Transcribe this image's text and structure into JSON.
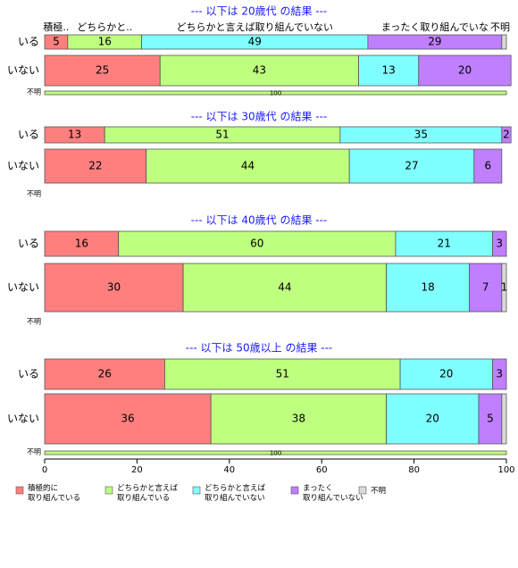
{
  "chart_data": {
    "type": "bar",
    "orientation": "horizontal",
    "stacked": true,
    "xlim": [
      0,
      100
    ],
    "x_ticks": [
      "0",
      "20",
      "40",
      "60",
      "80",
      "100"
    ],
    "series_names": [
      "積極的に\n取り組んでいる",
      "どちらかと言えば\n取り組んでいる",
      "どちらかと言えば\n取り組んでいない",
      "まったく\n取り組んでいない",
      "不明"
    ],
    "colors": [
      "#ff7f7f",
      "#bfff7f",
      "#7fffff",
      "#bf7fff",
      "#d9d9d9"
    ],
    "top_labels": [
      "積極..",
      "どちらかと..",
      "どちらかと言えば取り組んでいない",
      "まったく取り組んでいな",
      "不明"
    ],
    "panels": [
      {
        "title": "--- 以下は 20歳代 の結果 ---",
        "rows": [
          {
            "label": "いる",
            "values": [
              5,
              16,
              49,
              29,
              1
            ],
            "labels": [
              "5",
              "16",
              "49",
              "29",
              ""
            ]
          },
          {
            "label": "いない",
            "values": [
              25,
              43,
              13,
              20,
              0
            ],
            "labels": [
              "25",
              "43",
              "13",
              "20",
              ""
            ]
          },
          {
            "label": "不明",
            "values": [
              0,
              100,
              0,
              0,
              0
            ],
            "labels": [
              "",
              "100",
              "",
              "",
              ""
            ],
            "thin": true
          }
        ]
      },
      {
        "title": "--- 以下は 30歳代 の結果 ---",
        "rows": [
          {
            "label": "いる",
            "values": [
              13,
              51,
              35,
              2,
              0
            ],
            "labels": [
              "13",
              "51",
              "35",
              "2",
              ""
            ]
          },
          {
            "label": "いない",
            "values": [
              22,
              44,
              27,
              6,
              0
            ],
            "labels": [
              "22",
              "44",
              "27",
              "6",
              ""
            ]
          },
          {
            "label": "不明",
            "values": [
              0,
              0,
              0,
              0,
              0
            ],
            "labels": [
              "",
              "",
              "",
              "",
              ""
            ],
            "thin": true
          }
        ]
      },
      {
        "title": "--- 以下は 40歳代 の結果 ---",
        "rows": [
          {
            "label": "いる",
            "values": [
              16,
              60,
              21,
              3,
              0
            ],
            "labels": [
              "16",
              "60",
              "21",
              "3",
              ""
            ]
          },
          {
            "label": "いない",
            "values": [
              30,
              44,
              18,
              7,
              1
            ],
            "labels": [
              "30",
              "44",
              "18",
              "7",
              "1"
            ]
          },
          {
            "label": "不明",
            "values": [
              0,
              0,
              0,
              0,
              0
            ],
            "labels": [
              "",
              "",
              "",
              "",
              ""
            ],
            "thin": true
          }
        ]
      },
      {
        "title": "--- 以下は 50歳以上 の結果 ---",
        "rows": [
          {
            "label": "いる",
            "values": [
              26,
              51,
              20,
              3,
              0
            ],
            "labels": [
              "26",
              "51",
              "20",
              "3",
              ""
            ]
          },
          {
            "label": "いない",
            "values": [
              36,
              38,
              20,
              5,
              1
            ],
            "labels": [
              "36",
              "38",
              "20",
              "5",
              ""
            ]
          },
          {
            "label": "不明",
            "values": [
              0,
              100,
              0,
              0,
              0
            ],
            "labels": [
              "",
              "100",
              "",
              "",
              ""
            ],
            "thin": true
          }
        ]
      }
    ]
  }
}
